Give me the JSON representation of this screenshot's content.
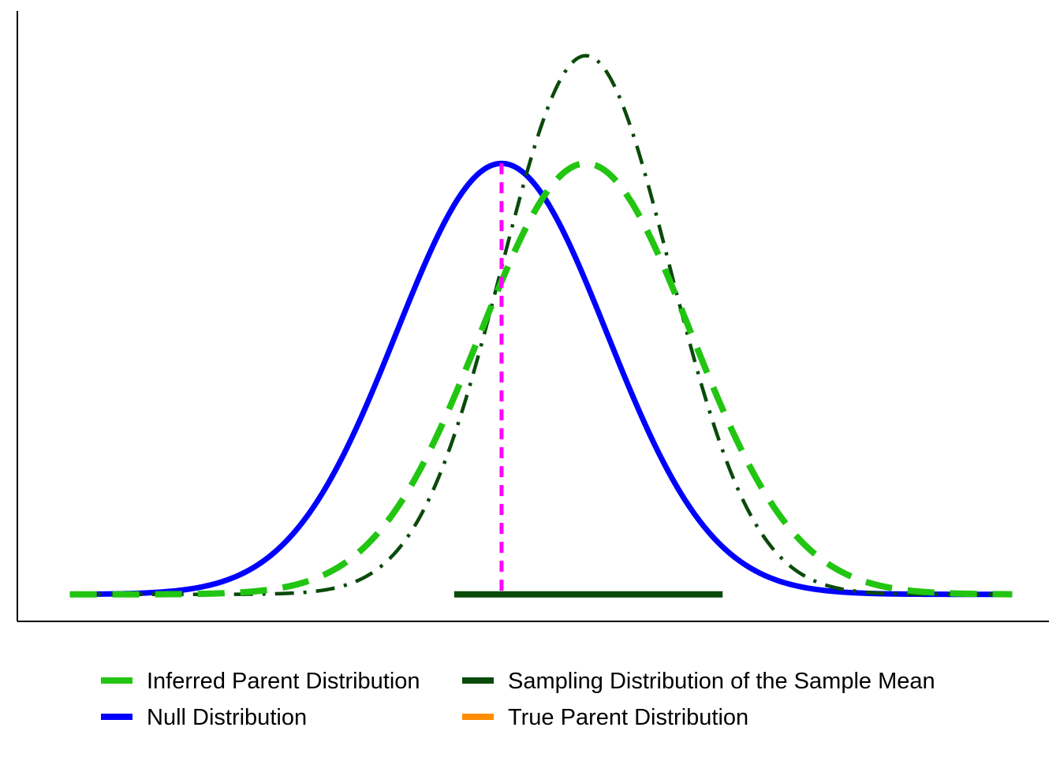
{
  "chart_data": {
    "type": "line",
    "title": "",
    "xlabel": "",
    "ylabel": "",
    "xlim": [
      -4.6,
      5.2
    ],
    "ylim": [
      -0.025,
      0.54
    ],
    "grid": false,
    "axis_ticks": false,
    "legend_position": "bottom",
    "legend_columns": 2,
    "series": [
      {
        "name": "Inferred Parent Distribution",
        "kind": "normal-density",
        "mean": 0.8,
        "sd": 1.0,
        "color": "#22c511",
        "dash": "long-dash"
      },
      {
        "name": "Sampling Distribution of the Sample Mean",
        "kind": "normal-density",
        "mean": 0.8,
        "sd": 0.8,
        "color": "#0a4a0a",
        "dash": "dot-dash"
      },
      {
        "name": "Null Distribution",
        "kind": "normal-density",
        "mean": 0.0,
        "sd": 1.0,
        "color": "#0000ff",
        "dash": "solid"
      },
      {
        "name": "True Parent Distribution",
        "kind": "normal-density",
        "mean": null,
        "sd": null,
        "color": "#ff8c00",
        "dash": "solid"
      }
    ],
    "annotations": [
      {
        "kind": "vertical-line",
        "x": 0.0,
        "y_from": 0,
        "y_to": 0.399,
        "color": "#ff00ff",
        "dash": "dashed"
      },
      {
        "kind": "interval-bar",
        "x_from": -0.45,
        "x_to": 2.1,
        "y": 0,
        "color": "#0a4a0a"
      }
    ]
  }
}
